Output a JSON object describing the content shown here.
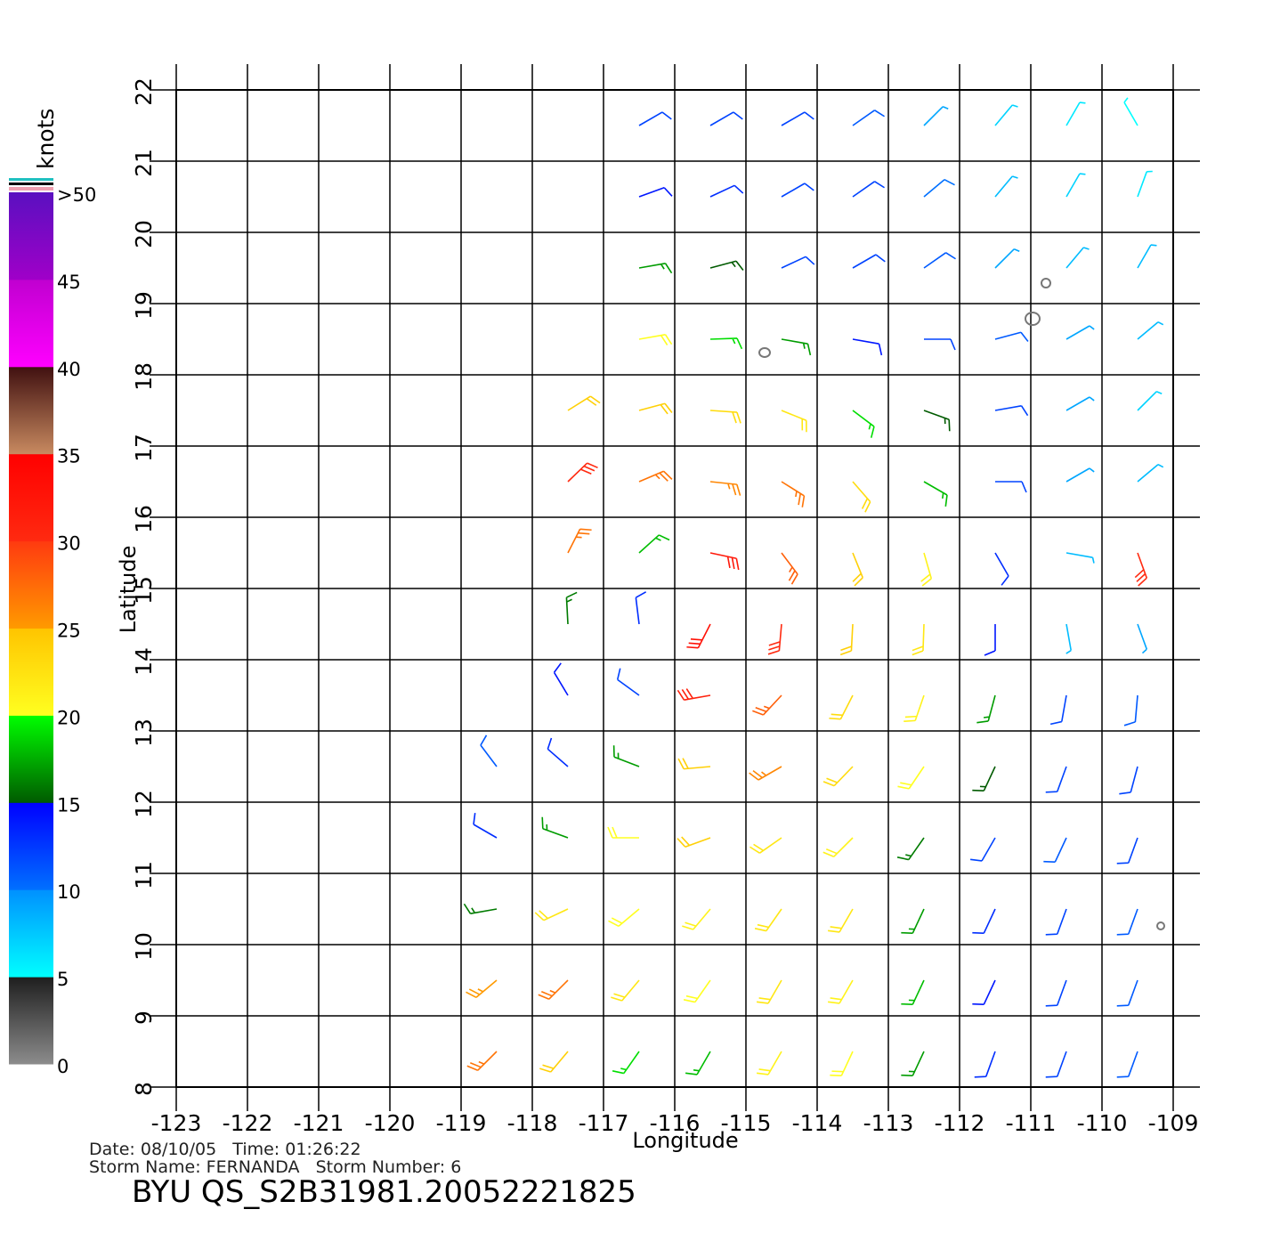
{
  "map": {
    "type": "wind-barbs",
    "xlabel": "Longitude",
    "ylabel": "Latitude",
    "xlim": [
      -123,
      -109
    ],
    "ylim": [
      8,
      22
    ],
    "xticks": [
      -123,
      -122,
      -121,
      -120,
      -119,
      -118,
      -117,
      -116,
      -115,
      -114,
      -113,
      -112,
      -111,
      -110,
      -109
    ],
    "yticks": [
      8,
      9,
      10,
      11,
      12,
      13,
      14,
      15,
      16,
      17,
      18,
      19,
      20,
      21,
      22
    ],
    "colorbar": {
      "title": "knots",
      "ticks": [
        0,
        5,
        10,
        15,
        20,
        25,
        30,
        35,
        40,
        45,
        {
          "value": 50,
          "label": ">50"
        }
      ],
      "colors": [
        [
          "#8c8c8c",
          "#1e1e1e"
        ],
        [
          "#00ffff",
          "#0090ff"
        ],
        [
          "#0070ff",
          "#0000ff"
        ],
        [
          "#005a00",
          "#00ff00"
        ],
        [
          "#ffff20",
          "#ffc400"
        ],
        [
          "#ff9a00",
          "#ff3a10"
        ],
        [
          "#ff2a10",
          "#ff0000"
        ],
        [
          "#c88a60",
          "#401010"
        ],
        [
          "#ff00ff",
          "#c000d0"
        ],
        [
          "#a000c8",
          "#5a10c0"
        ]
      ]
    },
    "barbs": [
      [
        -116.5,
        21.5,
        12,
        60
      ],
      [
        -115.5,
        21.5,
        12,
        60
      ],
      [
        -114.5,
        21.5,
        12,
        60
      ],
      [
        -113.5,
        21.5,
        11,
        55
      ],
      [
        -112.5,
        21.5,
        9,
        45
      ],
      [
        -111.5,
        21.5,
        7,
        40
      ],
      [
        -110.5,
        21.5,
        6,
        30
      ],
      [
        -109.5,
        21.5,
        5,
        330
      ],
      [
        -116.5,
        20.5,
        14,
        70
      ],
      [
        -115.5,
        20.5,
        13,
        65
      ],
      [
        -114.5,
        20.5,
        12,
        60
      ],
      [
        -113.5,
        20.5,
        12,
        55
      ],
      [
        -112.5,
        20.5,
        10,
        50
      ],
      [
        -111.5,
        20.5,
        8,
        40
      ],
      [
        -110.5,
        20.5,
        7,
        30
      ],
      [
        -109.5,
        20.5,
        6,
        20
      ],
      [
        -116.5,
        19.5,
        17,
        80
      ],
      [
        -115.5,
        19.5,
        15,
        75
      ],
      [
        -114.5,
        19.5,
        12,
        65
      ],
      [
        -113.5,
        19.5,
        12,
        60
      ],
      [
        -112.5,
        19.5,
        11,
        55
      ],
      [
        -111.5,
        19.5,
        9,
        45
      ],
      [
        -110.5,
        19.5,
        8,
        40
      ],
      [
        -109.5,
        19.5,
        8,
        30
      ],
      [
        -116.5,
        18.5,
        20,
        80
      ],
      [
        -115.5,
        18.5,
        19,
        88
      ],
      [
        -114.5,
        18.5,
        17,
        100
      ],
      [
        -113.5,
        18.5,
        14,
        100
      ],
      [
        -112.5,
        18.5,
        12,
        90
      ],
      [
        -111.5,
        18.5,
        11,
        75
      ],
      [
        -110.5,
        18.5,
        9,
        60
      ],
      [
        -109.5,
        18.5,
        8,
        50
      ],
      [
        -117.5,
        17.5,
        24,
        58
      ],
      [
        -116.5,
        17.5,
        24,
        75
      ],
      [
        -115.5,
        17.5,
        23,
        94
      ],
      [
        -114.5,
        17.5,
        22,
        112
      ],
      [
        -113.5,
        17.5,
        19,
        127
      ],
      [
        -112.5,
        17.5,
        15,
        110
      ],
      [
        -111.5,
        17.5,
        12,
        80
      ],
      [
        -110.5,
        17.5,
        9,
        60
      ],
      [
        -109.5,
        17.5,
        7,
        45
      ],
      [
        -117.5,
        16.5,
        30,
        46
      ],
      [
        -116.5,
        16.5,
        27,
        67
      ],
      [
        -115.5,
        16.5,
        26,
        96
      ],
      [
        -114.5,
        16.5,
        27,
        122
      ],
      [
        -113.5,
        16.5,
        23,
        139
      ],
      [
        -112.5,
        16.5,
        18,
        120
      ],
      [
        -111.5,
        16.5,
        12,
        90
      ],
      [
        -110.5,
        16.5,
        9,
        60
      ],
      [
        -109.5,
        16.5,
        8,
        50
      ],
      [
        -117.5,
        15.5,
        27,
        27
      ],
      [
        -116.5,
        15.5,
        18,
        48
      ],
      [
        -115.5,
        15.5,
        32,
        102
      ],
      [
        -114.5,
        15.5,
        28,
        143
      ],
      [
        -113.5,
        15.5,
        24,
        158
      ],
      [
        -112.5,
        15.5,
        21,
        164
      ],
      [
        -111.5,
        15.5,
        13,
        150
      ],
      [
        -110.5,
        15.5,
        8,
        100
      ],
      [
        -109.5,
        15.5,
        30,
        160
      ],
      [
        -117.5,
        14.5,
        16,
        357
      ],
      [
        -116.5,
        14.5,
        13,
        353
      ],
      [
        -115.5,
        14.5,
        33,
        207
      ],
      [
        -114.5,
        14.5,
        30,
        185
      ],
      [
        -113.5,
        14.5,
        24,
        183
      ],
      [
        -112.5,
        14.5,
        22,
        182
      ],
      [
        -111.5,
        14.5,
        14,
        180
      ],
      [
        -110.5,
        14.5,
        8,
        170
      ],
      [
        -109.5,
        14.5,
        9,
        160
      ],
      [
        -117.5,
        13.5,
        14,
        329
      ],
      [
        -116.5,
        13.5,
        12,
        306
      ],
      [
        -115.5,
        13.5,
        31,
        260
      ],
      [
        -114.5,
        13.5,
        28,
        223
      ],
      [
        -113.5,
        13.5,
        23,
        207
      ],
      [
        -112.5,
        13.5,
        21,
        199
      ],
      [
        -111.5,
        13.5,
        17,
        195
      ],
      [
        -110.5,
        13.5,
        12,
        190
      ],
      [
        -109.5,
        13.5,
        11,
        185
      ],
      [
        -118.5,
        12.5,
        11,
        323
      ],
      [
        -117.5,
        12.5,
        13,
        311
      ],
      [
        -116.5,
        12.5,
        17,
        291
      ],
      [
        -115.5,
        12.5,
        24,
        265
      ],
      [
        -114.5,
        12.5,
        26,
        240
      ],
      [
        -113.5,
        12.5,
        23,
        224
      ],
      [
        -112.5,
        12.5,
        20,
        214
      ],
      [
        -111.5,
        12.5,
        15,
        205
      ],
      [
        -110.5,
        12.5,
        12,
        200
      ],
      [
        -109.5,
        12.5,
        12,
        195
      ],
      [
        -118.5,
        11.5,
        13,
        300
      ],
      [
        -117.5,
        11.5,
        17,
        290
      ],
      [
        -116.5,
        11.5,
        20,
        270
      ],
      [
        -115.5,
        11.5,
        24,
        250
      ],
      [
        -114.5,
        11.5,
        22,
        235
      ],
      [
        -113.5,
        11.5,
        21,
        225
      ],
      [
        -112.5,
        11.5,
        16,
        215
      ],
      [
        -111.5,
        11.5,
        12,
        210
      ],
      [
        -110.5,
        11.5,
        11,
        205
      ],
      [
        -109.5,
        11.5,
        12,
        200
      ],
      [
        -118.5,
        10.5,
        16,
        260
      ],
      [
        -117.5,
        10.5,
        22,
        245
      ],
      [
        -116.5,
        10.5,
        20,
        230
      ],
      [
        -115.5,
        10.5,
        21,
        220
      ],
      [
        -114.5,
        10.5,
        22,
        215
      ],
      [
        -113.5,
        10.5,
        22,
        210
      ],
      [
        -112.5,
        10.5,
        17,
        205
      ],
      [
        -111.5,
        10.5,
        13,
        205
      ],
      [
        -110.5,
        10.5,
        12,
        200
      ],
      [
        -109.5,
        10.5,
        11,
        200
      ],
      [
        -118.5,
        9.5,
        25,
        230
      ],
      [
        -117.5,
        9.5,
        27,
        225
      ],
      [
        -116.5,
        9.5,
        22,
        220
      ],
      [
        -115.5,
        9.5,
        20,
        215
      ],
      [
        -114.5,
        9.5,
        22,
        210
      ],
      [
        -113.5,
        9.5,
        21,
        210
      ],
      [
        -112.5,
        9.5,
        18,
        205
      ],
      [
        -111.5,
        9.5,
        14,
        205
      ],
      [
        -110.5,
        9.5,
        12,
        200
      ],
      [
        -109.5,
        9.5,
        11,
        200
      ],
      [
        -118.5,
        8.5,
        27,
        225
      ],
      [
        -117.5,
        8.5,
        24,
        220
      ],
      [
        -116.5,
        8.5,
        19,
        215
      ],
      [
        -115.5,
        8.5,
        18,
        210
      ],
      [
        -114.5,
        8.5,
        21,
        210
      ],
      [
        -113.5,
        8.5,
        20,
        205
      ],
      [
        -112.5,
        8.5,
        17,
        205
      ],
      [
        -111.5,
        8.5,
        13,
        200
      ],
      [
        -110.5,
        8.5,
        12,
        200
      ],
      [
        -109.5,
        8.5,
        11,
        200
      ]
    ]
  },
  "footer": {
    "info1": "Date: 08/10/05   Time: 01:26:22",
    "info2": "Storm Name: FERNANDA   Storm Number: 6",
    "product": "BYU QS_S2B31981.20052221825"
  }
}
